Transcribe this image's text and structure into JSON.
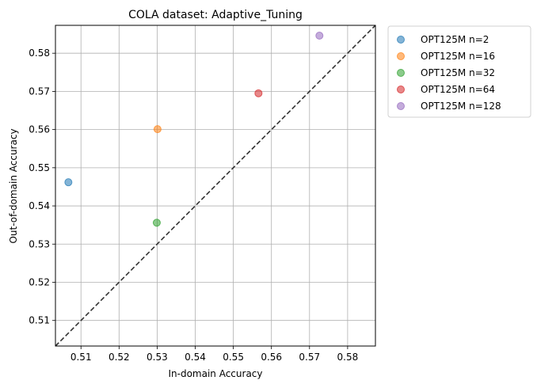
{
  "chart_data": {
    "type": "scatter",
    "title": "COLA dataset: Adaptive_Tuning",
    "xlabel": "In-domain Accuracy",
    "ylabel": "Out-of-domain Accuracy",
    "xlim": [
      0.5033,
      0.5873
    ],
    "ylim": [
      0.5033,
      0.5873
    ],
    "xticks": [
      "0.51",
      "0.52",
      "0.53",
      "0.54",
      "0.55",
      "0.56",
      "0.57",
      "0.58"
    ],
    "yticks": [
      "0.51",
      "0.52",
      "0.53",
      "0.54",
      "0.55",
      "0.56",
      "0.57",
      "0.58"
    ],
    "grid": true,
    "diagonal_line": true,
    "legend_position": "outside-top-right",
    "series": [
      {
        "name": "OPT125M n=2",
        "color": "#1f77b4",
        "points": [
          [
            0.5067,
            0.5462
          ]
        ]
      },
      {
        "name": "OPT125M n=16",
        "color": "#ff7f0e",
        "points": [
          [
            0.5301,
            0.5601
          ]
        ]
      },
      {
        "name": "OPT125M n=32",
        "color": "#2ca02c",
        "points": [
          [
            0.5299,
            0.5356
          ]
        ]
      },
      {
        "name": "OPT125M n=64",
        "color": "#d62728",
        "points": [
          [
            0.5566,
            0.5695
          ]
        ]
      },
      {
        "name": "OPT125M n=128",
        "color": "#9467bd",
        "points": [
          [
            0.5726,
            0.5846
          ]
        ]
      }
    ]
  }
}
